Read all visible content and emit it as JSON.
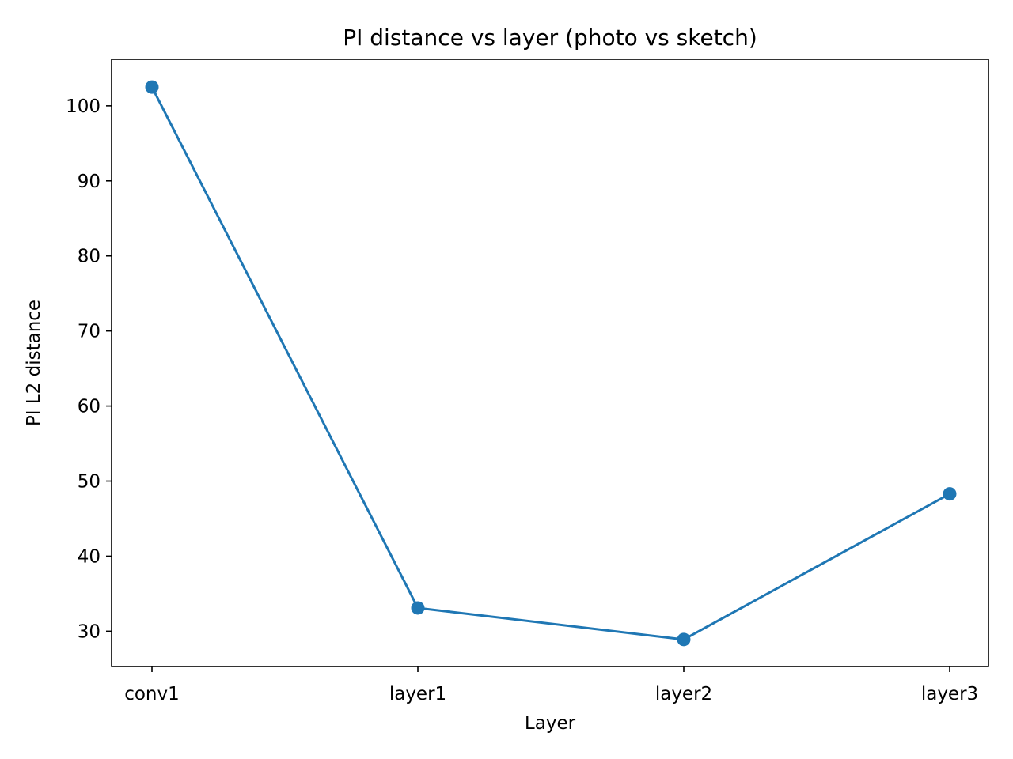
{
  "chart_data": {
    "type": "line",
    "title": "PI distance vs layer (photo vs sketch)",
    "xlabel": "Layer",
    "ylabel": "PI L2 distance",
    "categories": [
      "conv1",
      "layer1",
      "layer2",
      "layer3"
    ],
    "series": [
      {
        "values": [
          102.5,
          33.1,
          28.9,
          48.3
        ],
        "color": "#1f77b4",
        "marker": "circle"
      }
    ],
    "ylim": [
      25.3,
      106.2
    ],
    "yticks": [
      30,
      40,
      50,
      60,
      70,
      80,
      90,
      100
    ],
    "grid": false,
    "legend": "none"
  }
}
